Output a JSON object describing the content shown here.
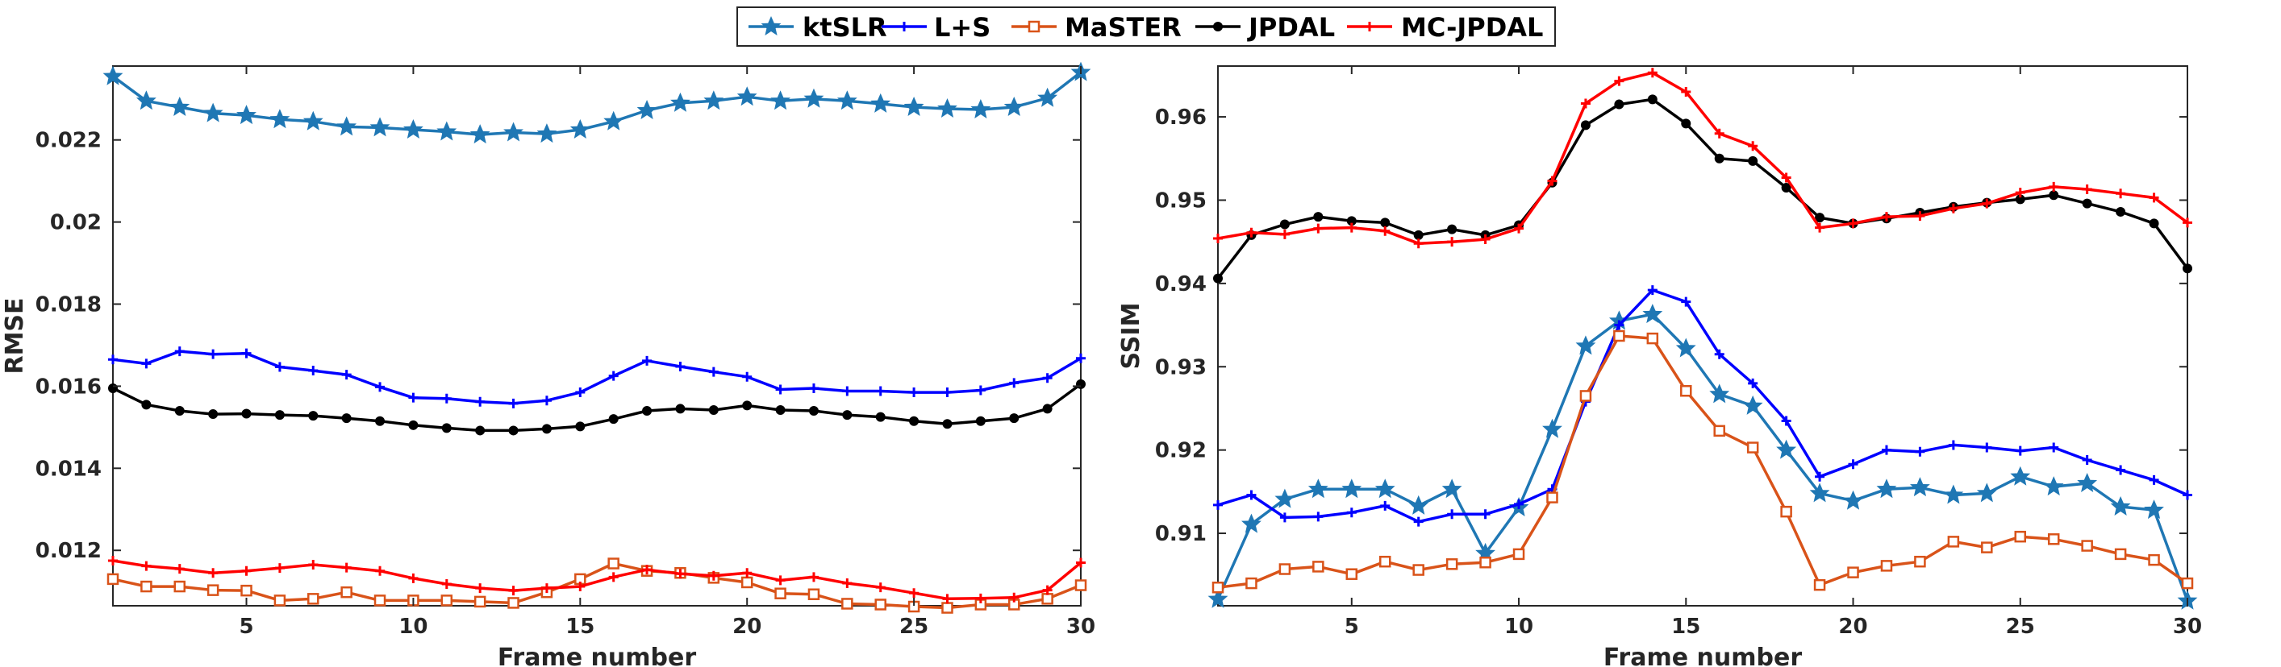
{
  "legend": {
    "entries": [
      {
        "name": "ktSLR",
        "color": "#1f77b4",
        "marker": "star"
      },
      {
        "name": "L+S",
        "color": "#0000ff",
        "marker": "plus"
      },
      {
        "name": "MaSTER",
        "color": "#d95319",
        "marker": "square"
      },
      {
        "name": "JPDAL",
        "color": "#000000",
        "marker": "dot"
      },
      {
        "name": "MC-JPDAL",
        "color": "#ff0000",
        "marker": "plus"
      }
    ]
  },
  "chart_data": [
    {
      "type": "line",
      "ylabel": "RMSE",
      "xlabel": "Frame number",
      "xlim": [
        1,
        30
      ],
      "ylim": [
        0.01065,
        0.0238
      ],
      "xticks": [
        5,
        10,
        15,
        20,
        25,
        30
      ],
      "xtick_labels": [
        "5",
        "10",
        "15",
        "20",
        "25",
        "30"
      ],
      "yticks": [
        0.012,
        0.014,
        0.016,
        0.018,
        0.02,
        0.022
      ],
      "ytick_labels": [
        "0.012",
        "0.014",
        "0.016",
        "0.018",
        "0.02",
        "0.022"
      ],
      "x": [
        1,
        2,
        3,
        4,
        5,
        6,
        7,
        8,
        9,
        10,
        11,
        12,
        13,
        14,
        15,
        16,
        17,
        18,
        19,
        20,
        21,
        22,
        23,
        24,
        25,
        26,
        27,
        28,
        29,
        30
      ],
      "series": [
        {
          "name": "ktSLR",
          "values": [
            0.02355,
            0.02295,
            0.0228,
            0.02265,
            0.0226,
            0.0225,
            0.02245,
            0.02232,
            0.0223,
            0.02225,
            0.0222,
            0.02213,
            0.02218,
            0.02215,
            0.02225,
            0.02245,
            0.02272,
            0.0229,
            0.02295,
            0.02305,
            0.02295,
            0.023,
            0.02295,
            0.02288,
            0.0228,
            0.02276,
            0.02274,
            0.0228,
            0.02302,
            0.02365
          ]
        },
        {
          "name": "L+S",
          "values": [
            0.01665,
            0.01655,
            0.01685,
            0.01678,
            0.0168,
            0.01647,
            0.01638,
            0.01628,
            0.01598,
            0.01572,
            0.0157,
            0.01562,
            0.01558,
            0.01565,
            0.01585,
            0.01625,
            0.01662,
            0.01648,
            0.01635,
            0.01623,
            0.01592,
            0.01595,
            0.01588,
            0.01588,
            0.01585,
            0.01585,
            0.0159,
            0.01608,
            0.0162,
            0.01668
          ]
        },
        {
          "name": "MaSTER",
          "values": [
            0.0113,
            0.01112,
            0.01112,
            0.01103,
            0.01102,
            0.01078,
            0.01082,
            0.01098,
            0.01078,
            0.01078,
            0.01078,
            0.01075,
            0.01072,
            0.01098,
            0.0113,
            0.01168,
            0.0115,
            0.01145,
            0.01133,
            0.01122,
            0.01095,
            0.01093,
            0.0107,
            0.01068,
            0.01063,
            0.0106,
            0.01068,
            0.01068,
            0.01082,
            0.01115
          ]
        },
        {
          "name": "JPDAL",
          "values": [
            0.01595,
            0.01555,
            0.0154,
            0.01532,
            0.01533,
            0.0153,
            0.01528,
            0.01522,
            0.01515,
            0.01505,
            0.01498,
            0.01492,
            0.01492,
            0.01496,
            0.01502,
            0.0152,
            0.0154,
            0.01545,
            0.01542,
            0.01553,
            0.01542,
            0.0154,
            0.0153,
            0.01525,
            0.01515,
            0.01508,
            0.01515,
            0.01522,
            0.01545,
            0.01605
          ]
        },
        {
          "name": "MC-JPDAL",
          "values": [
            0.01175,
            0.01162,
            0.01155,
            0.01145,
            0.0115,
            0.01157,
            0.01165,
            0.01158,
            0.0115,
            0.01132,
            0.01118,
            0.01108,
            0.01102,
            0.01108,
            0.01112,
            0.01135,
            0.01153,
            0.01143,
            0.01138,
            0.01145,
            0.01127,
            0.01135,
            0.0112,
            0.0111,
            0.01096,
            0.01082,
            0.01083,
            0.01085,
            0.01103,
            0.0117
          ]
        }
      ]
    },
    {
      "type": "line",
      "ylabel": "SSIM",
      "xlabel": "Frame number",
      "xlim": [
        1,
        30
      ],
      "ylim": [
        0.9013,
        0.9661
      ],
      "xticks": [
        5,
        10,
        15,
        20,
        25,
        30
      ],
      "xtick_labels": [
        "5",
        "10",
        "15",
        "20",
        "25",
        "30"
      ],
      "yticks": [
        0.91,
        0.92,
        0.93,
        0.94,
        0.95,
        0.96
      ],
      "ytick_labels": [
        "0.91",
        "0.92",
        "0.93",
        "0.94",
        "0.95",
        "0.96"
      ],
      "x": [
        1,
        2,
        3,
        4,
        5,
        6,
        7,
        8,
        9,
        10,
        11,
        12,
        13,
        14,
        15,
        16,
        17,
        18,
        19,
        20,
        21,
        22,
        23,
        24,
        25,
        26,
        27,
        28,
        29,
        30
      ],
      "series": [
        {
          "name": "ktSLR",
          "values": [
            0.9021,
            0.9111,
            0.9141,
            0.9153,
            0.9153,
            0.9153,
            0.9133,
            0.9153,
            0.9076,
            0.9131,
            0.9225,
            0.9325,
            0.9355,
            0.9363,
            0.9322,
            0.9267,
            0.9253,
            0.92,
            0.9148,
            0.9139,
            0.9153,
            0.9155,
            0.9146,
            0.9148,
            0.9168,
            0.9156,
            0.916,
            0.9132,
            0.9128,
            0.9019
          ]
        },
        {
          "name": "L+S",
          "values": [
            0.9134,
            0.9146,
            0.9119,
            0.912,
            0.9125,
            0.9133,
            0.9114,
            0.9123,
            0.9123,
            0.9135,
            0.9153,
            0.9258,
            0.935,
            0.9392,
            0.9378,
            0.9315,
            0.928,
            0.9235,
            0.9168,
            0.9183,
            0.92,
            0.9198,
            0.9206,
            0.9203,
            0.9199,
            0.9203,
            0.9188,
            0.9176,
            0.9164,
            0.9146
          ]
        },
        {
          "name": "MaSTER",
          "values": [
            0.9035,
            0.904,
            0.9057,
            0.906,
            0.9051,
            0.9066,
            0.9056,
            0.9063,
            0.9065,
            0.9075,
            0.9143,
            0.9265,
            0.9337,
            0.9334,
            0.9271,
            0.9223,
            0.9203,
            0.9126,
            0.9038,
            0.9053,
            0.9061,
            0.9066,
            0.909,
            0.9083,
            0.9096,
            0.9093,
            0.9085,
            0.9075,
            0.9068,
            0.904
          ]
        },
        {
          "name": "JPDAL",
          "values": [
            0.9406,
            0.9458,
            0.9471,
            0.948,
            0.9475,
            0.9473,
            0.9458,
            0.9465,
            0.9458,
            0.947,
            0.9521,
            0.959,
            0.9615,
            0.9621,
            0.9592,
            0.955,
            0.9547,
            0.9515,
            0.9479,
            0.9472,
            0.9478,
            0.9485,
            0.9492,
            0.9497,
            0.9501,
            0.9506,
            0.9496,
            0.9486,
            0.9472,
            0.9418
          ]
        },
        {
          "name": "MC-JPDAL",
          "values": [
            0.9454,
            0.9461,
            0.9459,
            0.9466,
            0.9467,
            0.9463,
            0.9448,
            0.945,
            0.9453,
            0.9466,
            0.9523,
            0.9616,
            0.9643,
            0.9653,
            0.963,
            0.958,
            0.9565,
            0.9527,
            0.9467,
            0.9472,
            0.948,
            0.9481,
            0.949,
            0.9496,
            0.9509,
            0.9516,
            0.9513,
            0.9508,
            0.9503,
            0.9473
          ]
        }
      ]
    }
  ]
}
